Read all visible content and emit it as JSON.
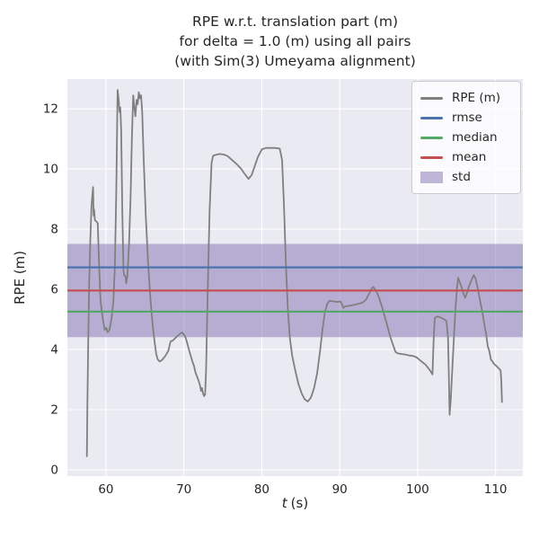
{
  "title": {
    "line1": "RPE w.r.t. translation part (m)",
    "line2": "for delta = 1.0 (m) using all pairs",
    "line3": "(with Sim(3) Umeyama alignment)"
  },
  "axes": {
    "xlabel": "t (s)",
    "xlabel_var": "t",
    "xlabel_unit": "(s)",
    "ylabel": "RPE (m)"
  },
  "legend": {
    "items": [
      {
        "label": "RPE (m)",
        "swatch": "line",
        "color": "#7f7f7f"
      },
      {
        "label": "rmse",
        "swatch": "line",
        "color": "#4c72b0"
      },
      {
        "label": "median",
        "swatch": "line",
        "color": "#55a868"
      },
      {
        "label": "mean",
        "swatch": "line",
        "color": "#c44e52"
      },
      {
        "label": "std",
        "swatch": "patch",
        "color": "#8172b2"
      }
    ]
  },
  "stats": {
    "rmse": 6.73,
    "median": 5.26,
    "mean": 5.96,
    "std": 1.55
  },
  "colors": {
    "figure_bg": "#ffffff",
    "plot_bg": "#eaeaf2",
    "grid": "#ffffff",
    "text": "#262626",
    "rpe_line": "#7f7f7f",
    "rmse_line": "#4c72b0",
    "median_line": "#55a868",
    "mean_line": "#c44e52",
    "std_fill": "#8172b2"
  },
  "chart_data": {
    "type": "line",
    "title": "RPE w.r.t. translation part (m) for delta = 1.0 (m) using all pairs (with Sim(3) Umeyama alignment)",
    "xlabel": "t (s)",
    "ylabel": "RPE (m)",
    "xlim": [
      55.05,
      113.5
    ],
    "ylim": [
      -0.21,
      12.99
    ],
    "xticks": [
      60,
      70,
      80,
      90,
      100,
      110
    ],
    "yticks": [
      0,
      2,
      4,
      6,
      8,
      10,
      12
    ],
    "grid": true,
    "legend_position": "upper right",
    "hlines": [
      {
        "name": "rmse",
        "value": 6.73,
        "color": "#4c72b0"
      },
      {
        "name": "median",
        "value": 5.26,
        "color": "#55a868"
      },
      {
        "name": "mean",
        "value": 5.96,
        "color": "#c44e52"
      }
    ],
    "band": {
      "name": "std",
      "range": [
        4.41,
        7.51
      ],
      "color": "#8172b2",
      "alpha": 0.5
    },
    "series": [
      {
        "name": "RPE (m)",
        "color": "#7f7f7f",
        "points": [
          [
            57.55,
            0.45
          ],
          [
            57.62,
            2.2
          ],
          [
            57.72,
            4.2
          ],
          [
            57.85,
            6.2
          ],
          [
            58.0,
            7.7
          ],
          [
            58.15,
            8.8
          ],
          [
            58.35,
            9.4
          ],
          [
            58.42,
            8.45
          ],
          [
            58.48,
            8.65
          ],
          [
            58.58,
            8.3
          ],
          [
            58.78,
            8.25
          ],
          [
            58.95,
            8.2
          ],
          [
            59.1,
            7.0
          ],
          [
            59.3,
            5.6
          ],
          [
            59.6,
            5.0
          ],
          [
            59.85,
            4.65
          ],
          [
            60.05,
            4.72
          ],
          [
            60.2,
            4.57
          ],
          [
            60.45,
            4.65
          ],
          [
            60.7,
            5.0
          ],
          [
            60.95,
            5.6
          ],
          [
            61.15,
            6.8
          ],
          [
            61.32,
            9.2
          ],
          [
            61.5,
            12.63
          ],
          [
            61.63,
            12.3
          ],
          [
            61.74,
            11.9
          ],
          [
            61.84,
            12.05
          ],
          [
            61.95,
            11.3
          ],
          [
            62.1,
            8.5
          ],
          [
            62.25,
            6.6
          ],
          [
            62.37,
            6.45
          ],
          [
            62.5,
            6.45
          ],
          [
            62.6,
            6.2
          ],
          [
            62.75,
            6.45
          ],
          [
            62.95,
            7.4
          ],
          [
            63.15,
            9.0
          ],
          [
            63.33,
            11.0
          ],
          [
            63.5,
            12.45
          ],
          [
            63.65,
            12.05
          ],
          [
            63.78,
            11.75
          ],
          [
            63.94,
            12.3
          ],
          [
            64.08,
            12.15
          ],
          [
            64.22,
            12.55
          ],
          [
            64.36,
            12.35
          ],
          [
            64.5,
            12.45
          ],
          [
            64.65,
            11.9
          ],
          [
            64.85,
            10.3
          ],
          [
            65.1,
            8.5
          ],
          [
            65.4,
            6.9
          ],
          [
            65.7,
            5.7
          ],
          [
            66.0,
            4.8
          ],
          [
            66.25,
            4.25
          ],
          [
            66.45,
            3.85
          ],
          [
            66.65,
            3.67
          ],
          [
            66.9,
            3.6
          ],
          [
            67.2,
            3.65
          ],
          [
            67.6,
            3.78
          ],
          [
            68.0,
            3.95
          ],
          [
            68.3,
            4.27
          ],
          [
            68.6,
            4.3
          ],
          [
            68.9,
            4.38
          ],
          [
            69.2,
            4.45
          ],
          [
            69.5,
            4.52
          ],
          [
            69.75,
            4.57
          ],
          [
            70.0,
            4.5
          ],
          [
            70.25,
            4.38
          ],
          [
            70.5,
            4.15
          ],
          [
            70.7,
            3.95
          ],
          [
            70.9,
            3.77
          ],
          [
            71.1,
            3.6
          ],
          [
            71.3,
            3.45
          ],
          [
            71.5,
            3.22
          ],
          [
            71.7,
            3.1
          ],
          [
            71.9,
            2.95
          ],
          [
            72.05,
            2.82
          ],
          [
            72.2,
            2.62
          ],
          [
            72.32,
            2.72
          ],
          [
            72.45,
            2.55
          ],
          [
            72.6,
            2.45
          ],
          [
            72.72,
            2.5
          ],
          [
            72.85,
            3.3
          ],
          [
            73.05,
            5.8
          ],
          [
            73.3,
            8.6
          ],
          [
            73.55,
            10.2
          ],
          [
            73.75,
            10.44
          ],
          [
            74.1,
            10.47
          ],
          [
            74.6,
            10.5
          ],
          [
            75.1,
            10.48
          ],
          [
            75.6,
            10.43
          ],
          [
            76.1,
            10.32
          ],
          [
            76.7,
            10.18
          ],
          [
            77.3,
            10.02
          ],
          [
            77.85,
            9.82
          ],
          [
            78.3,
            9.67
          ],
          [
            78.7,
            9.8
          ],
          [
            79.1,
            10.1
          ],
          [
            79.5,
            10.4
          ],
          [
            80.0,
            10.65
          ],
          [
            80.5,
            10.7
          ],
          [
            81.1,
            10.7
          ],
          [
            81.7,
            10.7
          ],
          [
            82.3,
            10.68
          ],
          [
            82.6,
            10.3
          ],
          [
            82.85,
            8.8
          ],
          [
            83.1,
            6.8
          ],
          [
            83.35,
            5.3
          ],
          [
            83.6,
            4.4
          ],
          [
            83.9,
            3.8
          ],
          [
            84.3,
            3.3
          ],
          [
            84.7,
            2.85
          ],
          [
            85.1,
            2.55
          ],
          [
            85.5,
            2.35
          ],
          [
            85.9,
            2.27
          ],
          [
            86.3,
            2.4
          ],
          [
            86.7,
            2.7
          ],
          [
            87.1,
            3.2
          ],
          [
            87.5,
            4.0
          ],
          [
            87.8,
            4.7
          ],
          [
            88.1,
            5.25
          ],
          [
            88.4,
            5.52
          ],
          [
            88.7,
            5.62
          ],
          [
            89.2,
            5.6
          ],
          [
            89.7,
            5.58
          ],
          [
            90.1,
            5.6
          ],
          [
            90.3,
            5.5
          ],
          [
            90.45,
            5.38
          ],
          [
            90.7,
            5.43
          ],
          [
            91.1,
            5.45
          ],
          [
            91.6,
            5.47
          ],
          [
            92.1,
            5.5
          ],
          [
            92.6,
            5.53
          ],
          [
            93.0,
            5.57
          ],
          [
            93.4,
            5.67
          ],
          [
            93.8,
            5.87
          ],
          [
            94.1,
            6.03
          ],
          [
            94.3,
            6.08
          ],
          [
            94.55,
            6.0
          ],
          [
            94.85,
            5.85
          ],
          [
            95.15,
            5.65
          ],
          [
            95.45,
            5.4
          ],
          [
            95.75,
            5.12
          ],
          [
            96.05,
            4.85
          ],
          [
            96.35,
            4.55
          ],
          [
            96.65,
            4.3
          ],
          [
            96.95,
            4.08
          ],
          [
            97.15,
            3.92
          ],
          [
            97.45,
            3.87
          ],
          [
            97.95,
            3.85
          ],
          [
            98.45,
            3.83
          ],
          [
            98.95,
            3.8
          ],
          [
            99.45,
            3.78
          ],
          [
            99.85,
            3.74
          ],
          [
            100.25,
            3.65
          ],
          [
            100.65,
            3.57
          ],
          [
            101.0,
            3.5
          ],
          [
            101.3,
            3.4
          ],
          [
            101.6,
            3.3
          ],
          [
            101.9,
            3.17
          ],
          [
            102.05,
            4.3
          ],
          [
            102.2,
            5.05
          ],
          [
            102.55,
            5.1
          ],
          [
            102.95,
            5.06
          ],
          [
            103.35,
            5.01
          ],
          [
            103.7,
            4.95
          ],
          [
            103.9,
            4.4
          ],
          [
            104.0,
            3.2
          ],
          [
            104.1,
            1.83
          ],
          [
            104.25,
            2.35
          ],
          [
            104.45,
            3.35
          ],
          [
            104.65,
            4.35
          ],
          [
            104.85,
            5.35
          ],
          [
            105.05,
            6.05
          ],
          [
            105.2,
            6.38
          ],
          [
            105.45,
            6.2
          ],
          [
            105.7,
            6.02
          ],
          [
            105.9,
            5.85
          ],
          [
            106.1,
            5.72
          ],
          [
            106.35,
            5.9
          ],
          [
            106.6,
            6.1
          ],
          [
            106.9,
            6.3
          ],
          [
            107.2,
            6.47
          ],
          [
            107.45,
            6.35
          ],
          [
            107.7,
            6.05
          ],
          [
            107.95,
            5.7
          ],
          [
            108.3,
            5.25
          ],
          [
            108.55,
            4.85
          ],
          [
            108.8,
            4.5
          ],
          [
            109.0,
            4.1
          ],
          [
            109.2,
            3.95
          ],
          [
            109.4,
            3.67
          ],
          [
            109.6,
            3.6
          ],
          [
            109.8,
            3.52
          ],
          [
            110.1,
            3.45
          ],
          [
            110.3,
            3.4
          ],
          [
            110.5,
            3.35
          ],
          [
            110.65,
            3.3
          ],
          [
            110.75,
            2.9
          ],
          [
            110.82,
            2.25
          ]
        ]
      }
    ]
  }
}
